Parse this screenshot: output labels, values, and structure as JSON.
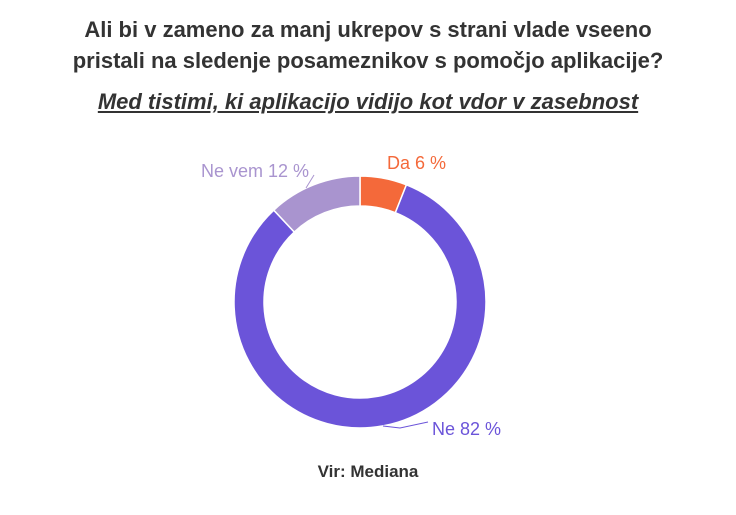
{
  "title": {
    "line1": "Ali bi v zameno za manj ukrepov s strani vlade vseeno",
    "line2": "pristali na sledenje posameznikov s pomočjo aplikacije?"
  },
  "subtitle": "Med tistimi, ki aplikacijo vidijo kot vdor v zasebnost",
  "source": "Vir: Mediana",
  "chart_data": {
    "type": "pie",
    "donut": true,
    "slices": [
      {
        "label": "Da 6 %",
        "value": 6,
        "color": "#f4693a"
      },
      {
        "label": "Ne 82 %",
        "value": 82,
        "color": "#6b54d9"
      },
      {
        "label": "Ne vem 12 %",
        "value": 12,
        "color": "#a994cf"
      }
    ]
  }
}
